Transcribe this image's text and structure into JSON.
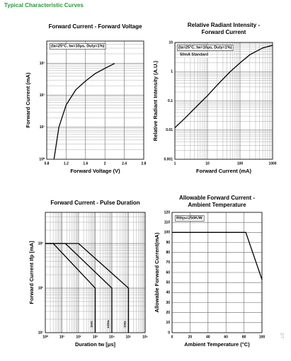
{
  "header": {
    "title": "Typical Characteristic Curves"
  },
  "page_number": "2/7",
  "chart_data": [
    {
      "type": "line",
      "title": [
        "Forward Current - Forward Voltage"
      ],
      "x_label": "Forward Voltage (V)",
      "y_label": "Forward Current (mA)",
      "annotations": [
        "(ta=25°C, tw=10μs, Duty=1%)"
      ],
      "xlim": [
        0.8,
        2.8
      ],
      "xticks": [
        0.8,
        1.2,
        1.6,
        2.0,
        2.4,
        2.8
      ],
      "ylim": [
        1,
        5000
      ],
      "ylog": true,
      "yticks": [
        {
          "value": 1,
          "label": "10⁰"
        },
        {
          "value": 10,
          "label": "10¹"
        },
        {
          "value": 100,
          "label": "10²"
        },
        {
          "value": 1000,
          "label": "10³"
        }
      ],
      "grid": true,
      "x": [
        0.95,
        1.05,
        1.2,
        1.4,
        1.6,
        1.8,
        2.0,
        2.2
      ],
      "series": [
        {
          "color": "#000000",
          "values": [
            1,
            10,
            50,
            150,
            280,
            480,
            700,
            1000
          ]
        }
      ]
    },
    {
      "type": "line",
      "title": [
        "Relative Radiant Intensity -",
        "Forward Current"
      ],
      "x_label": "Forward Current (mA)",
      "y_label": "Relative Radiant Intensity (A.U.)",
      "annotations": [
        "(ta=25°C, tw=10μs, Duty=1%)",
        "50mA Standard"
      ],
      "xlim": [
        1,
        1000
      ],
      "xlog": true,
      "xticks": [
        1,
        10,
        100,
        1000
      ],
      "ylim": [
        0.001,
        10
      ],
      "ylog": true,
      "yticks": [
        0.001,
        0.01,
        0.1,
        1,
        10
      ],
      "grid": true,
      "x": [
        1,
        2,
        5,
        10,
        20,
        50,
        100,
        200,
        500,
        1000
      ],
      "series": [
        {
          "color": "#000000",
          "values": [
            0.012,
            0.025,
            0.07,
            0.15,
            0.35,
            1,
            2,
            3.8,
            6.5,
            8
          ]
        }
      ]
    },
    {
      "type": "line",
      "title": [
        "Forward Current - Pulse Duration"
      ],
      "x_label": "Duration tw [μs]",
      "y_label": "Forward Current Ifp [mA]",
      "xlim": [
        1,
        1000000
      ],
      "xlog": true,
      "xticks": [
        {
          "value": 1,
          "label": "10⁰"
        },
        {
          "value": 10,
          "label": "10¹"
        },
        {
          "value": 100,
          "label": "10²"
        },
        {
          "value": 1000,
          "label": "10³"
        },
        {
          "value": 10000,
          "label": "10⁴"
        },
        {
          "value": 100000,
          "label": "10⁵"
        },
        {
          "value": 1000000,
          "label": "10⁶"
        }
      ],
      "ylim": [
        10,
        5000
      ],
      "ylog": true,
      "yticks": [
        {
          "value": 10,
          "label": "10¹"
        },
        {
          "value": 100,
          "label": "10²"
        },
        {
          "value": 1000,
          "label": "10³"
        }
      ],
      "grid": true,
      "series": [
        {
          "name": "1kHz",
          "color": "#000000",
          "x": [
            1,
            3,
            1000,
            1000
          ],
          "values": [
            1000,
            1000,
            100,
            10
          ]
        },
        {
          "name": "100Hz",
          "color": "#000000",
          "x": [
            1,
            16,
            10000,
            10000
          ],
          "values": [
            1000,
            1000,
            100,
            10
          ]
        },
        {
          "name": "10Hz",
          "color": "#000000",
          "x": [
            1,
            100,
            100000,
            100000
          ],
          "values": [
            1000,
            1000,
            100,
            10
          ]
        }
      ]
    },
    {
      "type": "line",
      "title": [
        "Allowable Forward Current -",
        "Ambient Temperature"
      ],
      "x_label": "Ambient Temperature (°C)",
      "y_label": "Allowable Forward Current(mA)",
      "annotations": [
        "Rthjs=250K/W"
      ],
      "xlim": [
        0,
        100
      ],
      "xticks": [
        0,
        20,
        40,
        60,
        80,
        100
      ],
      "ylim": [
        0,
        120
      ],
      "yticks": [
        0,
        10,
        20,
        30,
        40,
        50,
        60,
        70,
        80,
        90,
        100,
        110,
        120
      ],
      "grid": true,
      "x": [
        0,
        82,
        100
      ],
      "series": [
        {
          "color": "#000000",
          "values": [
            100,
            100,
            53
          ]
        }
      ]
    }
  ]
}
